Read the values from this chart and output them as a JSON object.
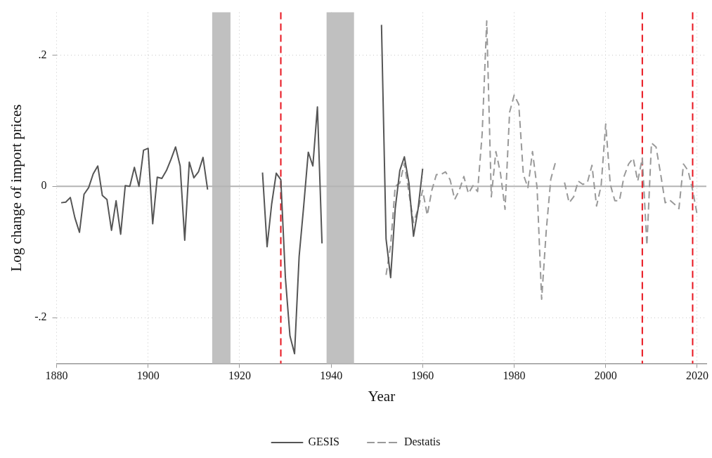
{
  "chart_data": {
    "type": "line",
    "xlabel": "Year",
    "ylabel": "Log change of import prices",
    "xlim": [
      1880,
      2022
    ],
    "xticks": [
      1880,
      1900,
      1920,
      1940,
      1960,
      1980,
      2000,
      2020
    ],
    "ylim": [
      -0.27,
      0.265
    ],
    "yticks": [
      {
        "value": -0.2,
        "label": "-.2"
      },
      0,
      {
        "value": 0.2,
        "label": ".2"
      }
    ],
    "grid": true,
    "legend": "bottom",
    "series": [
      {
        "name": "GESIS",
        "color": "#555555",
        "line_style": "solid",
        "x": [
          1881,
          1882,
          1883,
          1884,
          1885,
          1886,
          1887,
          1888,
          1889,
          1890,
          1891,
          1892,
          1893,
          1894,
          1895,
          1896,
          1897,
          1898,
          1899,
          1900,
          1901,
          1902,
          1903,
          1904,
          1905,
          1906,
          1907,
          1908,
          1909,
          1910,
          1911,
          1912,
          1913,
          1914,
          1915,
          1916,
          1917,
          1918,
          1919,
          1920,
          1921,
          1922,
          1923,
          1924,
          1925,
          1926,
          1927,
          1928,
          1929,
          1930,
          1931,
          1932,
          1933,
          1934,
          1935,
          1936,
          1937,
          1938,
          1939,
          1940,
          1941,
          1942,
          1943,
          1944,
          1945,
          1946,
          1947,
          1948,
          1949,
          1950,
          1951,
          1952,
          1953,
          1954,
          1955,
          1956,
          1957,
          1958,
          1959,
          1960
        ],
        "values": [
          -0.025,
          -0.024,
          -0.017,
          -0.048,
          -0.07,
          -0.012,
          -0.002,
          0.019,
          0.031,
          -0.014,
          -0.02,
          -0.067,
          -0.022,
          -0.073,
          0.001,
          0.0,
          0.029,
          0.0,
          0.055,
          0.058,
          -0.057,
          0.014,
          0.012,
          0.024,
          0.041,
          0.06,
          0.031,
          -0.082,
          0.037,
          0.013,
          0.022,
          0.044,
          -0.005,
          null,
          null,
          null,
          null,
          null,
          null,
          null,
          null,
          null,
          null,
          null,
          0.021,
          -0.092,
          -0.027,
          0.02,
          0.01,
          -0.139,
          -0.228,
          -0.255,
          -0.107,
          -0.03,
          0.052,
          0.031,
          0.121,
          -0.087,
          null,
          null,
          null,
          null,
          null,
          null,
          null,
          null,
          null,
          null,
          null,
          null,
          0.246,
          -0.08,
          -0.139,
          -0.034,
          0.024,
          0.045,
          0.005,
          -0.076,
          -0.034,
          0.027
        ]
      },
      {
        "name": "Destatis",
        "color": "#999999",
        "line_style": "dashed",
        "x": [
          1952,
          1953,
          1954,
          1955,
          1956,
          1957,
          1958,
          1959,
          1960,
          1961,
          1962,
          1963,
          1964,
          1965,
          1966,
          1967,
          1968,
          1969,
          1970,
          1971,
          1972,
          1973,
          1974,
          1975,
          1976,
          1977,
          1978,
          1979,
          1980,
          1981,
          1982,
          1983,
          1984,
          1985,
          1986,
          1987,
          1988,
          1989,
          1990,
          1991,
          1992,
          1993,
          1994,
          1995,
          1996,
          1997,
          1998,
          1999,
          2000,
          2001,
          2002,
          2003,
          2004,
          2005,
          2006,
          2007,
          2008,
          2009,
          2010,
          2011,
          2012,
          2013,
          2014,
          2015,
          2016,
          2017,
          2018,
          2019,
          2020
        ],
        "values": [
          -0.135,
          -0.09,
          0.0,
          0.005,
          0.035,
          -0.01,
          -0.055,
          -0.035,
          -0.006,
          -0.044,
          -0.006,
          0.018,
          0.018,
          0.022,
          0.01,
          -0.02,
          -0.006,
          0.015,
          -0.011,
          0.001,
          -0.008,
          0.08,
          0.252,
          -0.016,
          0.053,
          0.02,
          -0.035,
          0.113,
          0.139,
          0.125,
          0.018,
          -0.002,
          0.053,
          -0.002,
          -0.172,
          -0.068,
          0.011,
          0.036,
          null,
          0.006,
          -0.025,
          -0.016,
          0.008,
          0.003,
          0.006,
          0.032,
          -0.03,
          0.001,
          0.095,
          0.003,
          -0.022,
          -0.022,
          0.015,
          0.034,
          0.043,
          0.008,
          0.043,
          -0.09,
          0.066,
          0.06,
          0.019,
          -0.025,
          -0.021,
          -0.027,
          -0.034,
          0.034,
          0.024,
          -0.006,
          -0.044
        ]
      }
    ],
    "ref_lines": [
      {
        "axis": "y",
        "value": 0,
        "color": "#b4b4b4",
        "line_style": "solid"
      },
      {
        "axis": "x",
        "value": 1929,
        "color": "#e8141e",
        "line_style": "dashed"
      },
      {
        "axis": "x",
        "value": 2008,
        "color": "#e8141e",
        "line_style": "dashed"
      },
      {
        "axis": "x",
        "value": 2019,
        "color": "#e8141e",
        "line_style": "dashed"
      }
    ],
    "bands": [
      {
        "axis": "x",
        "from": 1914,
        "to": 1918,
        "color": "#c0c0c0"
      },
      {
        "axis": "x",
        "from": 1939,
        "to": 1945,
        "color": "#c0c0c0"
      }
    ]
  }
}
